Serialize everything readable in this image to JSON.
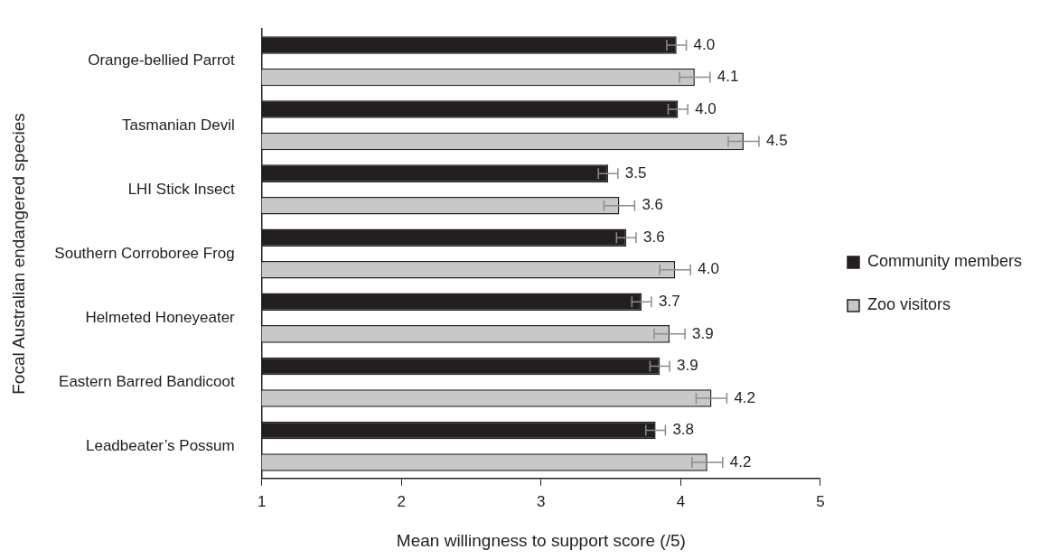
{
  "chart_data": {
    "type": "bar",
    "orientation": "horizontal",
    "xlabel": "Mean willingness to support score (/5)",
    "ylabel": "Focal Australian endangered species",
    "categories": [
      "Orange-bellied Parrot",
      "Tasmanian Devil",
      "LHI Stick Insect",
      "Southern Corroboree Frog",
      "Helmeted Honeyeater",
      "Eastern Barred Bandicoot",
      "Leadbeater’s Possum"
    ],
    "series": [
      {
        "name": "Community members",
        "color": "#231f20",
        "values": [
          3.97,
          3.98,
          3.48,
          3.61,
          3.72,
          3.85,
          3.82
        ],
        "errors": [
          0.07,
          0.07,
          0.07,
          0.07,
          0.07,
          0.07,
          0.07
        ],
        "value_labels": [
          "4.0",
          "4.0",
          "3.5",
          "3.6",
          "3.7",
          "3.9",
          "3.8"
        ]
      },
      {
        "name": "Zoo visitors",
        "color": "#c8c8c8",
        "values": [
          4.1,
          4.45,
          3.56,
          3.96,
          3.92,
          4.22,
          4.19
        ],
        "errors": [
          0.11,
          0.11,
          0.11,
          0.11,
          0.11,
          0.11,
          0.11
        ],
        "value_labels": [
          "4.1",
          "4.5",
          "3.6",
          "4.0",
          "3.9",
          "4.2",
          "4.2"
        ]
      }
    ],
    "xlim": [
      1,
      5
    ],
    "xticks": [
      1,
      2,
      3,
      4,
      5
    ],
    "grid": false,
    "legend": "right"
  }
}
